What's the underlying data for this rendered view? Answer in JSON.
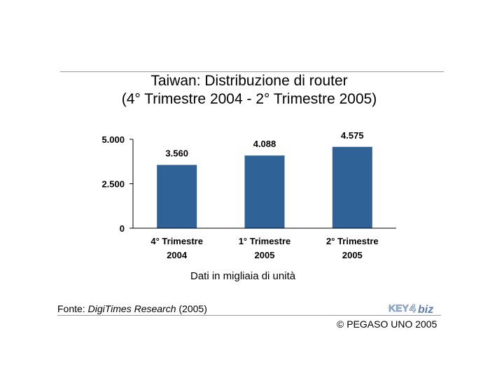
{
  "header": {
    "title_line1": "Taiwan: Distribuzione di router",
    "title_line2": "(4° Trimestre 2004 - 2° Trimestre 2005)"
  },
  "chart_data": {
    "type": "bar",
    "title": "Taiwan: Distribuzione di router (4° Trimestre 2004 - 2° Trimestre 2005)",
    "categories": [
      [
        "4° Trimestre",
        "2004"
      ],
      [
        "1° Trimestre",
        "2005"
      ],
      [
        "2° Trimestre",
        "2005"
      ]
    ],
    "values": [
      3560,
      4088,
      4575
    ],
    "value_labels": [
      "3.560",
      "4.088",
      "4.575"
    ],
    "yticks": [
      0,
      2500,
      5000
    ],
    "ytick_labels": [
      "0",
      "2.500",
      "5.000"
    ],
    "ylim": [
      0,
      5000
    ],
    "bar_color": "#2f6296",
    "grid": false,
    "legend": "none"
  },
  "footer": {
    "unit_note": "Dati in migliaia di unità",
    "source_prefix": "Fonte: ",
    "source_name": "DigiTimes Research",
    "source_suffix": " (2005)",
    "copyright": "© PEGASO UNO 2005",
    "logo_text": "KEY4biz"
  }
}
